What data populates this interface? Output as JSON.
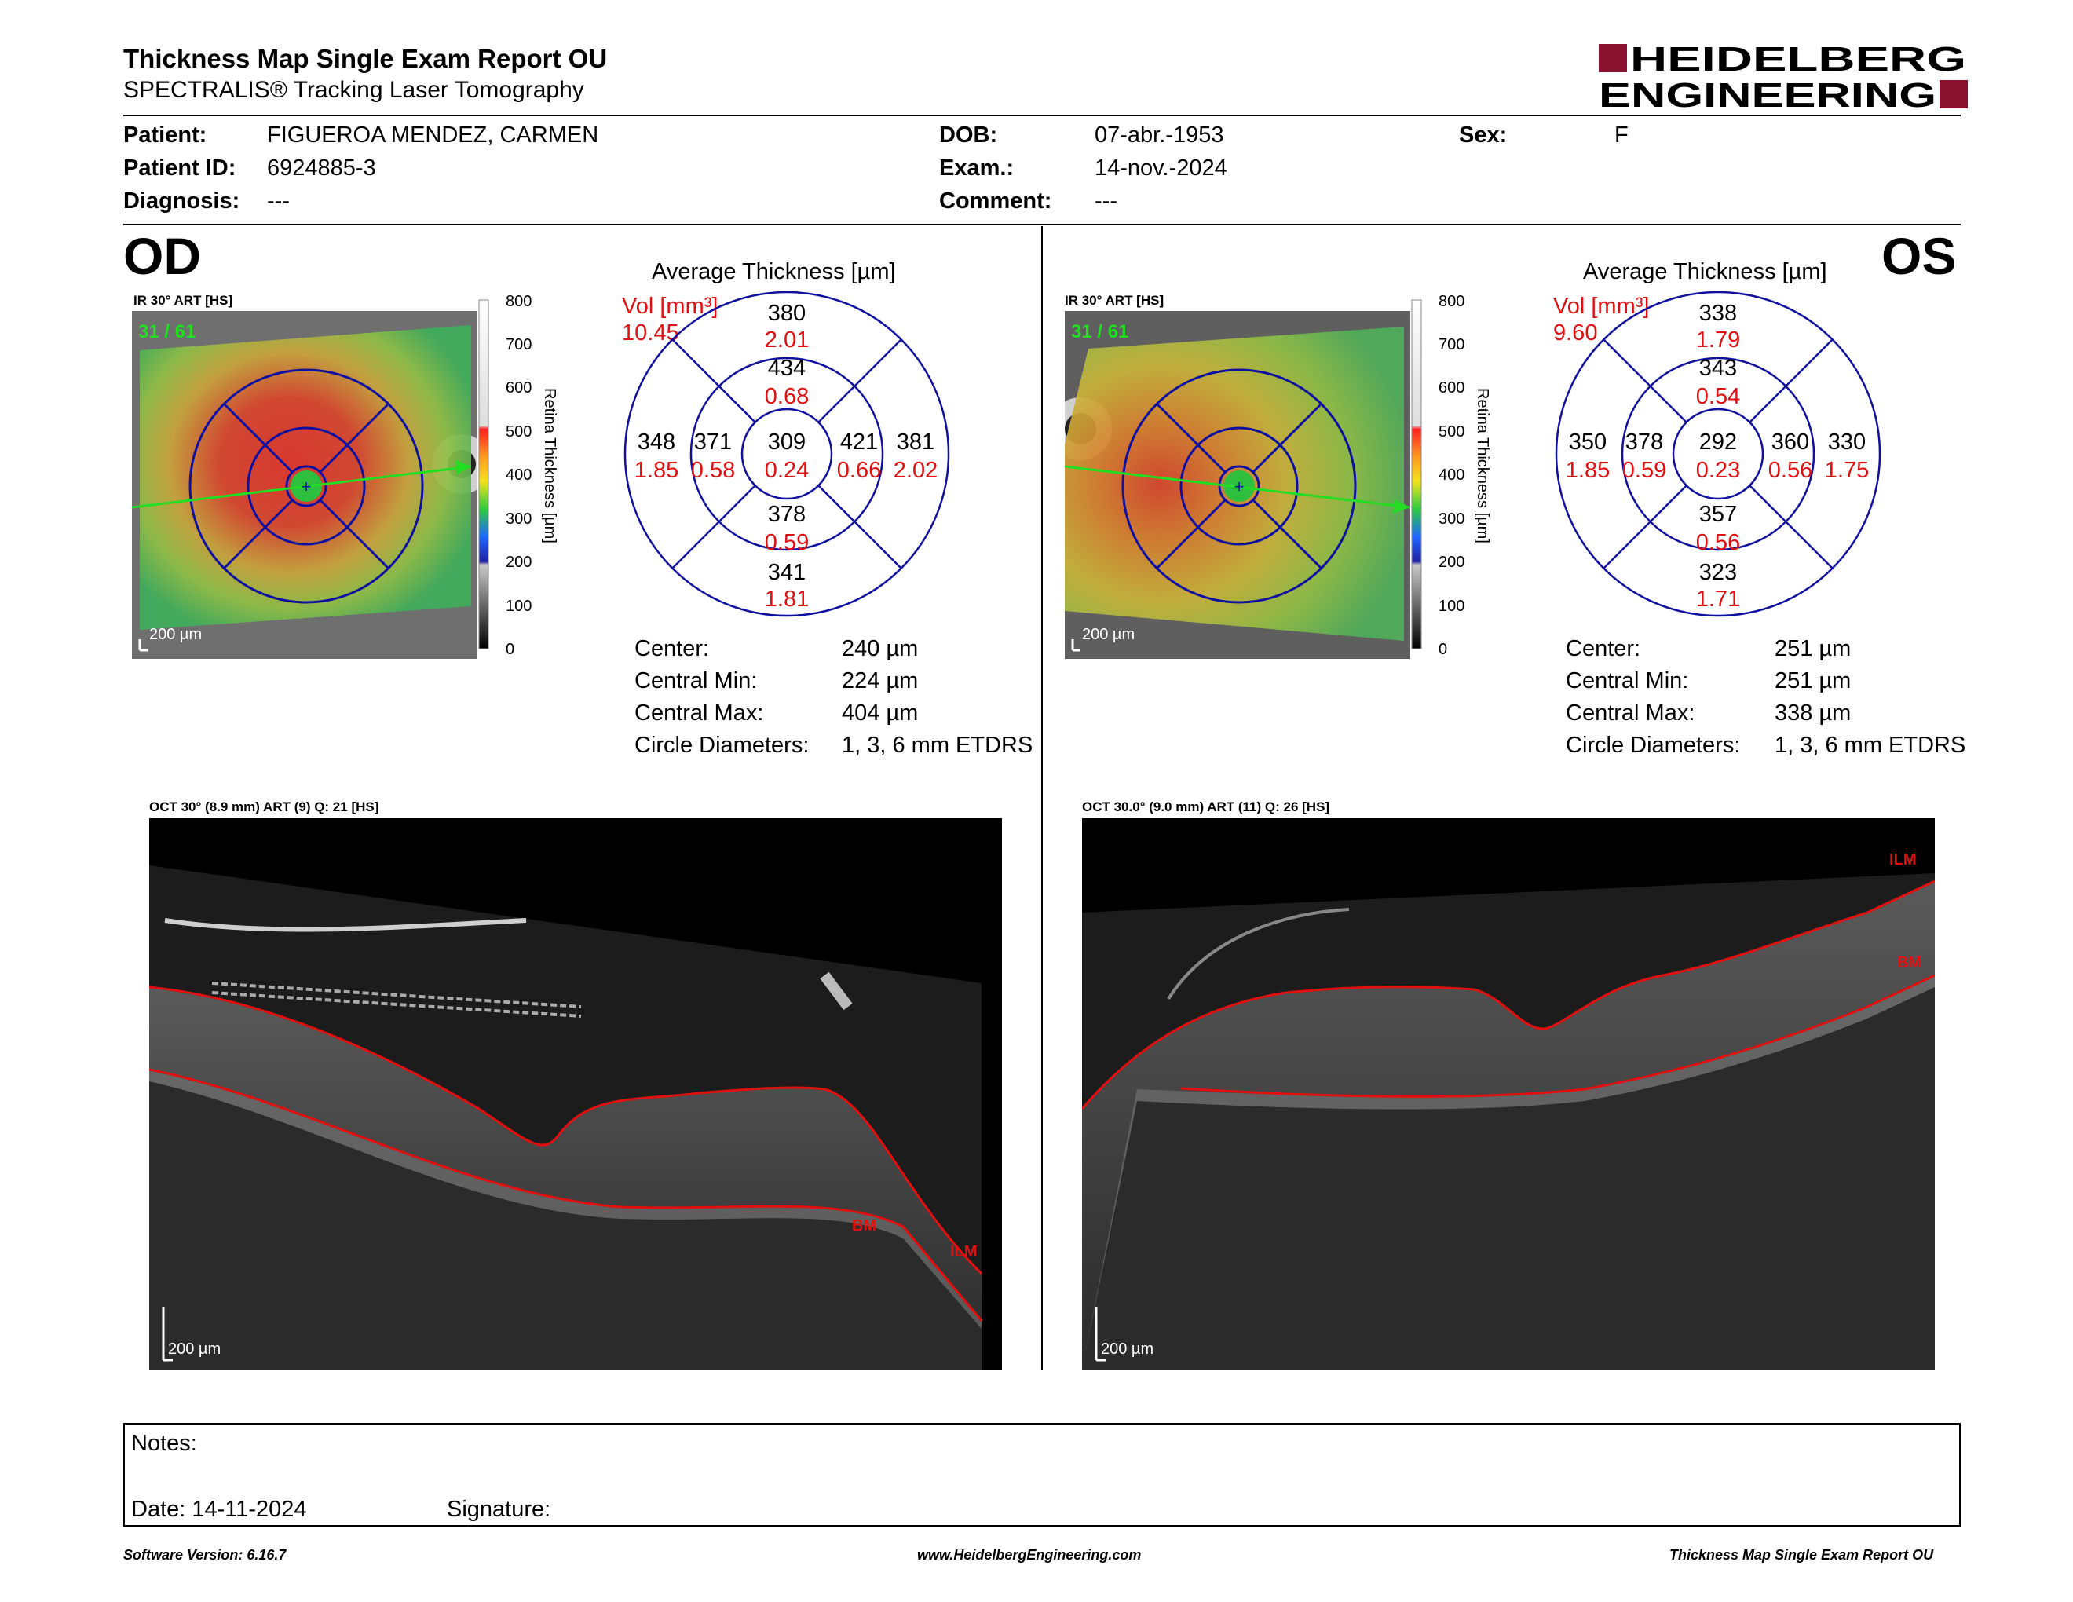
{
  "header": {
    "title": "Thickness Map Single Exam Report OU",
    "subtitle": "SPECTRALIS® Tracking Laser Tomography",
    "logo_line1": "HEIDELBERG",
    "logo_line2": "ENGINEERING",
    "brand_color": "#8a1230"
  },
  "patient": {
    "patient_label": "Patient:",
    "patient_value": "FIGUEROA MENDEZ, CARMEN",
    "id_label": "Patient ID:",
    "id_value": "6924885-3",
    "diagnosis_label": "Diagnosis:",
    "diagnosis_value": "---",
    "dob_label": "DOB:",
    "dob_value": "07-abr.-1953",
    "exam_label": "Exam.:",
    "exam_value": "14-nov.-2024",
    "comment_label": "Comment:",
    "comment_value": "---",
    "sex_label": "Sex:",
    "sex_value": "F"
  },
  "colorbar": {
    "ticks": [
      "800",
      "700",
      "600",
      "500",
      "400",
      "300",
      "200",
      "100",
      "0"
    ],
    "label": "Retina  Thickness [µm]"
  },
  "od": {
    "eye": "OD",
    "ir_label": "IR 30° ART [HS]",
    "frame": "31 / 61",
    "ir_scale": "200 µm",
    "avg_title": "Average Thickness [µm]",
    "vol_label": "Vol [mm³]",
    "vol_total": "10.45",
    "sectors": {
      "center": {
        "t": "309",
        "v": "0.24"
      },
      "inner_sup": {
        "t": "434",
        "v": "0.68"
      },
      "inner_inf": {
        "t": "378",
        "v": "0.59"
      },
      "inner_left": {
        "t": "371",
        "v": "0.58"
      },
      "inner_right": {
        "t": "421",
        "v": "0.66"
      },
      "outer_sup": {
        "t": "380",
        "v": "2.01"
      },
      "outer_inf": {
        "t": "341",
        "v": "1.81"
      },
      "outer_left": {
        "t": "348",
        "v": "1.85"
      },
      "outer_right": {
        "t": "381",
        "v": "2.02"
      }
    },
    "stats": {
      "center_label": "Center:",
      "center_value": "240 µm",
      "min_label": "Central Min:",
      "min_value": "224 µm",
      "max_label": "Central Max:",
      "max_value": "404 µm",
      "diam_label": "Circle Diameters:",
      "diam_value": "1, 3, 6 mm ETDRS"
    },
    "oct_label": "OCT 30° (8.9 mm) ART (9) Q: 21 [HS]",
    "oct_scale": "200 µm",
    "ilm": "ILM",
    "bm": "BM"
  },
  "os": {
    "eye": "OS",
    "ir_label": "IR 30° ART [HS]",
    "frame": "31 / 61",
    "ir_scale": "200 µm",
    "avg_title": "Average Thickness [µm]",
    "vol_label": "Vol [mm³]",
    "vol_total": "9.60",
    "sectors": {
      "center": {
        "t": "292",
        "v": "0.23"
      },
      "inner_sup": {
        "t": "343",
        "v": "0.54"
      },
      "inner_inf": {
        "t": "357",
        "v": "0.56"
      },
      "inner_left": {
        "t": "378",
        "v": "0.59"
      },
      "inner_right": {
        "t": "360",
        "v": "0.56"
      },
      "outer_sup": {
        "t": "338",
        "v": "1.79"
      },
      "outer_inf": {
        "t": "323",
        "v": "1.71"
      },
      "outer_left": {
        "t": "350",
        "v": "1.85"
      },
      "outer_right": {
        "t": "330",
        "v": "1.75"
      }
    },
    "stats": {
      "center_label": "Center:",
      "center_value": "251 µm",
      "min_label": "Central Min:",
      "min_value": "251 µm",
      "max_label": "Central Max:",
      "max_value": "338 µm",
      "diam_label": "Circle Diameters:",
      "diam_value": "1, 3, 6 mm ETDRS"
    },
    "oct_label": "OCT 30.0° (9.0 mm) ART (11) Q: 26 [HS]",
    "oct_scale": "200 µm",
    "ilm": "ILM",
    "bm": "BM"
  },
  "notes": {
    "notes_label": "Notes:",
    "date_label": "Date: 14-11-2024",
    "signature_label": "Signature:"
  },
  "footer": {
    "software": "Software Version: 6.16.7",
    "website": "www.HeidelbergEngineering.com",
    "report": "Thickness Map Single Exam Report OU"
  }
}
